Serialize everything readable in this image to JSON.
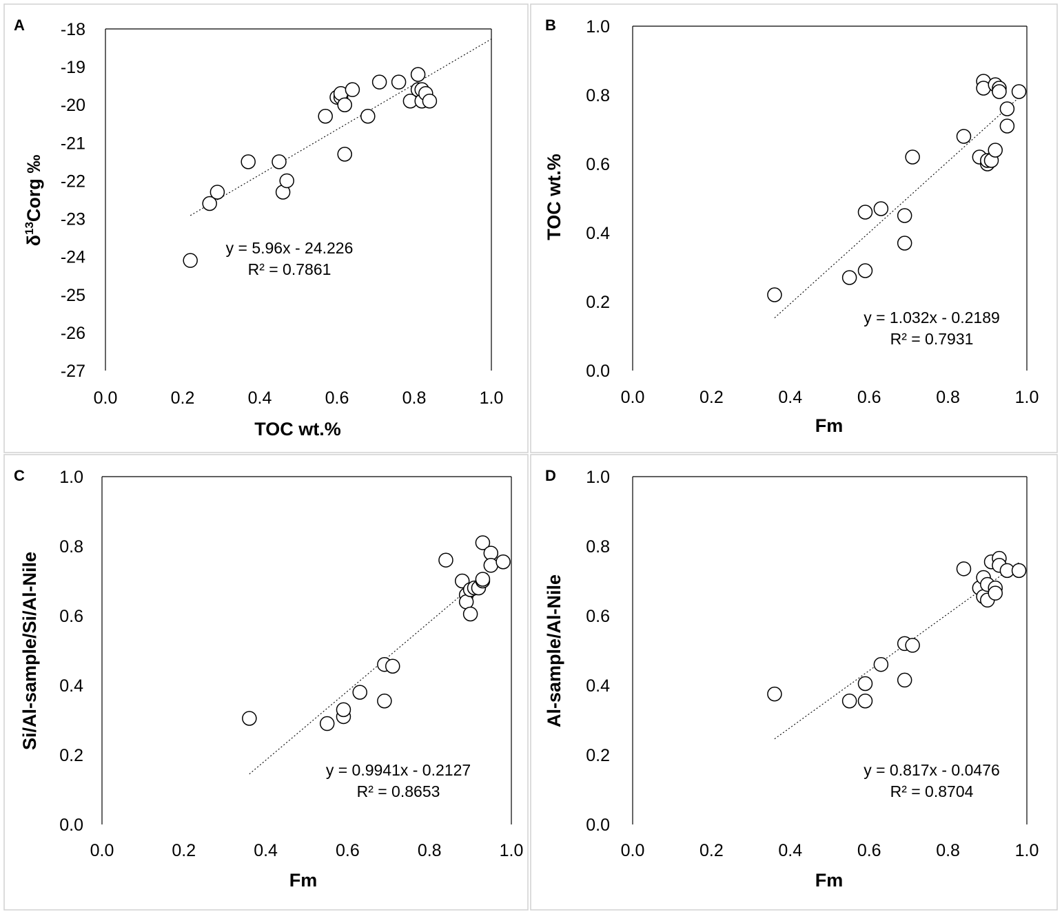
{
  "chart_data": [
    {
      "panel": "A",
      "type": "scatter",
      "xlabel": "TOC wt.%",
      "ylabel": "δ13Corg ‰",
      "ylabel_parts": [
        "δ",
        "13",
        "Corg ‰"
      ],
      "xlim": [
        0.0,
        1.0
      ],
      "ylim": [
        -27,
        -18
      ],
      "xticks": [
        "0.0",
        "0.2",
        "0.4",
        "0.6",
        "0.8",
        "1.0"
      ],
      "yticks": [
        "-18",
        "-19",
        "-20",
        "-21",
        "-22",
        "-23",
        "-24",
        "-25",
        "-26",
        "-27"
      ],
      "equation": "y = 5.96x - 24.226",
      "r2": "R² = 0.7861",
      "trendline": {
        "x": [
          0.22,
          1.0
        ],
        "y": [
          -22.915,
          -18.266
        ]
      },
      "points": [
        [
          0.22,
          -24.1
        ],
        [
          0.27,
          -22.6
        ],
        [
          0.29,
          -22.3
        ],
        [
          0.37,
          -21.5
        ],
        [
          0.45,
          -21.5
        ],
        [
          0.46,
          -22.3
        ],
        [
          0.47,
          -22.0
        ],
        [
          0.57,
          -20.3
        ],
        [
          0.6,
          -19.8
        ],
        [
          0.61,
          -19.8
        ],
        [
          0.61,
          -19.7
        ],
        [
          0.62,
          -20.0
        ],
        [
          0.62,
          -21.3
        ],
        [
          0.64,
          -19.6
        ],
        [
          0.68,
          -20.3
        ],
        [
          0.71,
          -19.4
        ],
        [
          0.76,
          -19.4
        ],
        [
          0.79,
          -19.9
        ],
        [
          0.81,
          -19.6
        ],
        [
          0.81,
          -19.2
        ],
        [
          0.82,
          -19.9
        ],
        [
          0.82,
          -19.6
        ],
        [
          0.83,
          -19.7
        ],
        [
          0.84,
          -19.9
        ]
      ]
    },
    {
      "panel": "B",
      "type": "scatter",
      "xlabel": "Fm",
      "ylabel": "TOC wt.%",
      "xlim": [
        0.0,
        1.0
      ],
      "ylim": [
        0.0,
        1.0
      ],
      "xticks": [
        "0.0",
        "0.2",
        "0.4",
        "0.6",
        "0.8",
        "1.0"
      ],
      "yticks": [
        "1.0",
        "0.8",
        "0.6",
        "0.4",
        "0.2",
        "0.0"
      ],
      "equation": "y = 1.032x - 0.2189",
      "r2": "R² = 0.7931",
      "trendline": {
        "x": [
          0.36,
          0.98
        ],
        "y": [
          0.153,
          0.793
        ]
      },
      "points": [
        [
          0.36,
          0.22
        ],
        [
          0.55,
          0.27
        ],
        [
          0.59,
          0.29
        ],
        [
          0.59,
          0.46
        ],
        [
          0.63,
          0.47
        ],
        [
          0.69,
          0.45
        ],
        [
          0.69,
          0.37
        ],
        [
          0.71,
          0.62
        ],
        [
          0.84,
          0.68
        ],
        [
          0.88,
          0.62
        ],
        [
          0.89,
          0.84
        ],
        [
          0.89,
          0.82
        ],
        [
          0.9,
          0.6
        ],
        [
          0.9,
          0.61
        ],
        [
          0.91,
          0.61
        ],
        [
          0.92,
          0.83
        ],
        [
          0.92,
          0.64
        ],
        [
          0.93,
          0.82
        ],
        [
          0.93,
          0.81
        ],
        [
          0.95,
          0.76
        ],
        [
          0.95,
          0.71
        ],
        [
          0.98,
          0.81
        ]
      ]
    },
    {
      "panel": "C",
      "type": "scatter",
      "xlabel": "Fm",
      "ylabel": "Si/Al-sample/Si/Al-Nile",
      "xlim": [
        0.0,
        1.0
      ],
      "ylim": [
        0.0,
        1.0
      ],
      "xticks": [
        "0.0",
        "0.2",
        "0.4",
        "0.6",
        "0.8",
        "1.0"
      ],
      "yticks": [
        "1.0",
        "0.8",
        "0.6",
        "0.4",
        "0.2",
        "0.0"
      ],
      "equation": "y = 0.9941x - 0.2127",
      "r2": "R² = 0.8653",
      "trendline": {
        "x": [
          0.36,
          0.98
        ],
        "y": [
          0.145,
          0.761
        ]
      },
      "points": [
        [
          0.36,
          0.305
        ],
        [
          0.55,
          0.29
        ],
        [
          0.59,
          0.31
        ],
        [
          0.59,
          0.33
        ],
        [
          0.63,
          0.38
        ],
        [
          0.69,
          0.355
        ],
        [
          0.69,
          0.46
        ],
        [
          0.71,
          0.455
        ],
        [
          0.84,
          0.76
        ],
        [
          0.88,
          0.7
        ],
        [
          0.89,
          0.66
        ],
        [
          0.89,
          0.64
        ],
        [
          0.9,
          0.605
        ],
        [
          0.9,
          0.675
        ],
        [
          0.91,
          0.68
        ],
        [
          0.92,
          0.68
        ],
        [
          0.93,
          0.7
        ],
        [
          0.93,
          0.705
        ],
        [
          0.93,
          0.81
        ],
        [
          0.95,
          0.78
        ],
        [
          0.95,
          0.745
        ],
        [
          0.98,
          0.755
        ]
      ]
    },
    {
      "panel": "D",
      "type": "scatter",
      "xlabel": "Fm",
      "ylabel": "Al-sample/Al-Nile",
      "xlim": [
        0.0,
        1.0
      ],
      "ylim": [
        0.0,
        1.0
      ],
      "xticks": [
        "0.0",
        "0.2",
        "0.4",
        "0.6",
        "0.8",
        "1.0"
      ],
      "yticks": [
        "1.0",
        "0.8",
        "0.6",
        "0.4",
        "0.2",
        "0.0"
      ],
      "equation": "y = 0.817x - 0.0476",
      "r2": "R² = 0.8704",
      "trendline": {
        "x": [
          0.36,
          0.98
        ],
        "y": [
          0.246,
          0.753
        ]
      },
      "points": [
        [
          0.36,
          0.375
        ],
        [
          0.55,
          0.355
        ],
        [
          0.59,
          0.355
        ],
        [
          0.59,
          0.405
        ],
        [
          0.63,
          0.46
        ],
        [
          0.69,
          0.415
        ],
        [
          0.69,
          0.52
        ],
        [
          0.71,
          0.515
        ],
        [
          0.84,
          0.735
        ],
        [
          0.88,
          0.68
        ],
        [
          0.89,
          0.655
        ],
        [
          0.89,
          0.71
        ],
        [
          0.9,
          0.645
        ],
        [
          0.9,
          0.69
        ],
        [
          0.91,
          0.755
        ],
        [
          0.92,
          0.68
        ],
        [
          0.92,
          0.665
        ],
        [
          0.93,
          0.765
        ],
        [
          0.93,
          0.745
        ],
        [
          0.95,
          0.73
        ],
        [
          0.98,
          0.73
        ]
      ]
    }
  ]
}
